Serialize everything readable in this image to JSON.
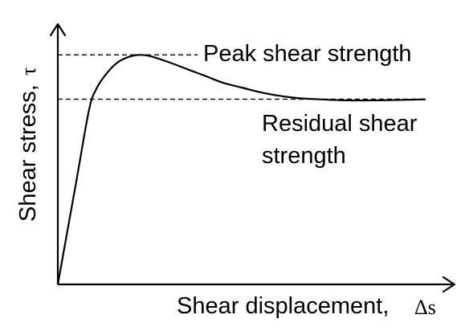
{
  "chart_data": {
    "type": "line",
    "title": "",
    "xlabel": "Shear displacement,",
    "xlabel_symbol": "Δs",
    "ylabel": "Shear stress,",
    "ylabel_symbol": "τ",
    "x_ticks": false,
    "y_ticks": false,
    "grid": false,
    "xlim": [
      0,
      100
    ],
    "ylim": [
      0,
      100
    ],
    "series": [
      {
        "points": [
          [
            0,
            0
          ],
          [
            5,
            44
          ],
          [
            8.5,
            75
          ],
          [
            10.5,
            84
          ],
          [
            13,
            90
          ],
          [
            16,
            95
          ],
          [
            19,
            97.5
          ],
          [
            22,
            98.5
          ],
          [
            25,
            98
          ],
          [
            30,
            95.5
          ],
          [
            35,
            92.5
          ],
          [
            40,
            89.5
          ],
          [
            45,
            86.5
          ],
          [
            50,
            84.5
          ],
          [
            55,
            82.5
          ],
          [
            60,
            81
          ],
          [
            65,
            80
          ],
          [
            70,
            79.5
          ],
          [
            78,
            79
          ],
          [
            86,
            79
          ],
          [
            94,
            79.2
          ],
          [
            100,
            79.4
          ]
        ]
      }
    ],
    "reference_lines": [
      {
        "y": 98.5,
        "label": "Peak shear strength"
      },
      {
        "y": 79.5,
        "label_lines": [
          "Residual shear",
          "strength"
        ]
      }
    ]
  }
}
